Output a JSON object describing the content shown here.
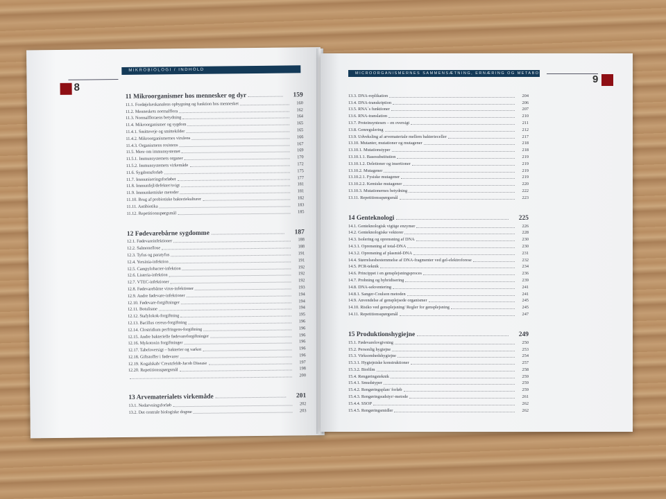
{
  "left_page": {
    "page_number": "8",
    "header": "MIKROBIOLOGI / INDHOLD",
    "sections": [
      {
        "num": "11",
        "title": "Mikroorganismer hos mennesker og dyr",
        "page": "159",
        "entries": [
          [
            "11.1.",
            "Fordøjelseskanalens opbygning og funktion hos mennesket",
            "160"
          ],
          [
            "11.2.",
            "Menneskets normalflora",
            "162"
          ],
          [
            "11.3.",
            "Normalfloraens betydning",
            "164"
          ],
          [
            "11.4.",
            "Mikroorganismer og sygdom",
            "165"
          ],
          [
            "11.4.1.",
            "Smitteveje og smittekilder",
            "165"
          ],
          [
            "11.4.2.",
            "Mikroorganismernes virulens",
            "166"
          ],
          [
            "11.4.3.",
            "Organismens resistens",
            "167"
          ],
          [
            "11.5.",
            "Mere om immunsystemet",
            "169"
          ],
          [
            "11.5.1.",
            "Immunsystemets organer",
            "170"
          ],
          [
            "11.5.2.",
            "Immunsystemets virkemåde",
            "172"
          ],
          [
            "11.6.",
            "Sygdomsforløb",
            "175"
          ],
          [
            "11.7.",
            "Immuniseringsforløbet",
            "177"
          ],
          [
            "11.8.",
            "Immunfejl/defekter/svigt",
            "181"
          ],
          [
            "11.9.",
            "Immunkemiske metoder",
            "181"
          ],
          [
            "11.10.",
            "Brug af probiotiske bakteriekulturer",
            "182"
          ],
          [
            "11.11.",
            "Antibiotika",
            "183"
          ],
          [
            "11.12.",
            "Repetitionsspørgsmål",
            "185"
          ]
        ]
      },
      {
        "num": "12",
        "title": "Fødevarebårne sygdomme",
        "page": "187",
        "entries": [
          [
            "12.1.",
            "Fødevareinfektioner",
            "188"
          ],
          [
            "12.2.",
            "Salmonellose",
            "188"
          ],
          [
            "12.3.",
            "Tyfus og paratyfus",
            "191"
          ],
          [
            "12.4.",
            "Yersinia-infektion",
            "191"
          ],
          [
            "12.5.",
            "Campylobacter-infektion",
            "192"
          ],
          [
            "12.6.",
            "Listeria-infektion",
            "192"
          ],
          [
            "12.7.",
            "VTEC-infektioner",
            "192"
          ],
          [
            "12.8.",
            "Fødevarebårne virus-infektioner",
            "193"
          ],
          [
            "12.9.",
            "Andre fødevare-infektioner",
            "194"
          ],
          [
            "12.10.",
            "Fødevare-forgiftninger",
            "194"
          ],
          [
            "12.11.",
            "Botulisme",
            "194"
          ],
          [
            "12.12.",
            "Stafylokok-forgiftning",
            "195"
          ],
          [
            "12.13.",
            "Bacillus cereus-forgiftning",
            "196"
          ],
          [
            "12.14.",
            "Clostridium perfringens-forgiftning",
            "196"
          ],
          [
            "12.15.",
            "Andre bakterielle fødevareforgiftninger",
            "196"
          ],
          [
            "12.16.",
            "Mykotoxin forgiftninger",
            "196"
          ],
          [
            "12.17.",
            "Tabeloversigt – bakterier og varkot",
            "196"
          ],
          [
            "12.18.",
            "Giftstoffer i fødevarer",
            "196"
          ],
          [
            "12.19.",
            "Kogalskab/ Creutzfeldt-Jacob Disease",
            "197"
          ],
          [
            "12.20.",
            "Repetitionsspørgsmål",
            "198"
          ],
          [
            "",
            "",
            "200"
          ]
        ]
      },
      {
        "num": "13",
        "title": "Arvematerialets virkemåde",
        "page": "201",
        "entries": [
          [
            "13.1.",
            "Nedarvningsforløb",
            "202"
          ],
          [
            "13.2.",
            "Det centrale biologiske dogme",
            "203"
          ]
        ]
      }
    ]
  },
  "right_page": {
    "page_number": "9",
    "header": "MICROORGANISMERNES SAMMENSÆTNING, ERNÆRING OG METABOLISME",
    "continued_entries": [
      [
        "13.3.",
        "DNA-replikation",
        "204"
      ],
      [
        "13.4.",
        "DNA-transkription",
        "206"
      ],
      [
        "13.5.",
        "RNA´s funktioner",
        "207"
      ],
      [
        "13.6.",
        "RNA-translation",
        "210"
      ],
      [
        "13.7.",
        "Proteinsyntesen – en oversigt",
        "211"
      ],
      [
        "13.8.",
        "Genregulering",
        "212"
      ],
      [
        "13.9.",
        "Udveksling af arvemateriale mellem bakterieceller",
        "217"
      ],
      [
        "13.10.",
        "Mutanter, mutationer og mutagener",
        "218"
      ],
      [
        "13.10.1.",
        "Mutationstyper",
        "218"
      ],
      [
        "13.10.1.1.",
        "Basesubstitution",
        "219"
      ],
      [
        "13.10.1.2.",
        "Deletioner og insertioner",
        "219"
      ],
      [
        "13.10.2.",
        "Mutagener",
        "219"
      ],
      [
        "13.10.2.1.",
        "Fysiske mutagener",
        "219"
      ],
      [
        "13.10.2.2.",
        "Kemiske mutagener",
        "220"
      ],
      [
        "13.10.3.",
        "Mutationernes betydning",
        "222"
      ],
      [
        "13.11.",
        "Repetitionsspørgsmål",
        "223"
      ]
    ],
    "sections": [
      {
        "num": "14",
        "title": "Genteknologi",
        "page": "225",
        "entries": [
          [
            "14.1.",
            "Genteknologisk vigtige enzymer",
            "226"
          ],
          [
            "14.2.",
            "Genteknologiske vektorer",
            "228"
          ],
          [
            "14.3.",
            "Isolering og oprensning af DNA",
            "230"
          ],
          [
            "14.3.1.",
            "Oprensning af total-DNA",
            "230"
          ],
          [
            "14.3.2.",
            "Oprensning af plasmid-DNA",
            "231"
          ],
          [
            "14.4.",
            "Størrelsesbestemmelse af DNA-fragmenter ved gel-elektroforese",
            "232"
          ],
          [
            "14.5.",
            "PCR-teknik",
            "234"
          ],
          [
            "14.6.",
            "Princippet i en gensplejsningsproces",
            "236"
          ],
          [
            "14.7.",
            "Probning og hybridisering",
            "239"
          ],
          [
            "14.8.",
            "DNA-sekventering",
            "241"
          ],
          [
            "14.8.1.",
            "Sanger-Coulson metoden",
            "241"
          ],
          [
            "14.9.",
            "Anvendelse af gensplejsede organismer",
            "245"
          ],
          [
            "14.10.",
            "Risiko ved gensplejsning/ Regler for gensplejsning",
            "245"
          ],
          [
            "14.11.",
            "Repetitionsspørgsmål",
            "247"
          ]
        ]
      },
      {
        "num": "15",
        "title": "Produktionshygiejne",
        "page": "249",
        "entries": [
          [
            "15.1.",
            "Fødevarelovgivning",
            "250"
          ],
          [
            "15.2.",
            "Personlig hygiejne",
            "253"
          ],
          [
            "15.3.",
            "Virksomhedshygiejne",
            "254"
          ],
          [
            "15.3.1.",
            "Hygiejniske konstruktioner",
            "257"
          ],
          [
            "15.3.2.",
            "Biofilm",
            "258"
          ],
          [
            "15.4.",
            "Rengøringsteknik",
            "259"
          ],
          [
            "15.4.1.",
            "Smudstyper",
            "259"
          ],
          [
            "15.4.2.",
            "Rengøringsplan/ forløb",
            "259"
          ],
          [
            "15.4.3.",
            "Rengøringsudstyr/-metode",
            "261"
          ],
          [
            "15.4.4.",
            "SSOP",
            "262"
          ],
          [
            "15.4.5.",
            "Rengøringsmidler",
            "262"
          ]
        ]
      }
    ]
  },
  "colors": {
    "banner": "#143a58",
    "page_marker": "#8e0f14",
    "table": "#b88d62"
  }
}
